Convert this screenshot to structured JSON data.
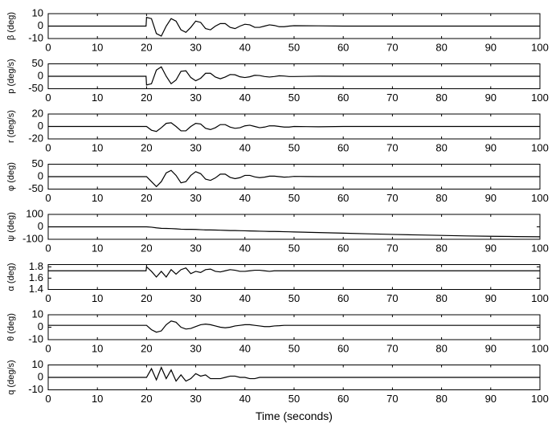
{
  "chart_data": [
    {
      "type": "line",
      "ylabel": "β (deg)",
      "color": "#000000",
      "xlim": [
        0,
        100
      ],
      "xticks": [
        0,
        10,
        20,
        30,
        40,
        50,
        60,
        70,
        80,
        90,
        100
      ],
      "ylim": [
        -10,
        10
      ],
      "yticks": [
        -10,
        0,
        10
      ],
      "x": [
        0,
        19.9,
        20,
        21,
        22,
        23,
        24,
        25,
        26,
        27,
        28,
        29,
        30,
        31,
        32,
        33,
        34,
        35,
        36,
        37,
        38,
        39,
        40,
        41,
        42,
        43,
        44,
        45,
        46,
        47,
        48,
        49,
        50,
        55,
        60,
        65,
        70,
        75,
        80,
        85,
        90,
        95,
        100
      ],
      "values": [
        0,
        0,
        7,
        6,
        -6,
        -8,
        0,
        6,
        4,
        -3,
        -5,
        -1,
        4,
        3,
        -2,
        -3,
        0,
        2,
        2,
        -1,
        -2,
        0,
        1.5,
        1,
        -1,
        -1,
        0,
        1,
        0.5,
        -0.5,
        -0.5,
        0,
        0.3,
        0.2,
        0,
        0,
        0,
        0,
        0,
        0,
        0,
        0,
        0
      ]
    },
    {
      "type": "line",
      "ylabel": "p (deg/s)",
      "color": "#000000",
      "xlim": [
        0,
        100
      ],
      "xticks": [
        0,
        10,
        20,
        30,
        40,
        50,
        60,
        70,
        80,
        90,
        100
      ],
      "ylim": [
        -50,
        50
      ],
      "yticks": [
        -50,
        0,
        50
      ],
      "x": [
        0,
        19.9,
        20,
        21,
        22,
        23,
        24,
        25,
        26,
        27,
        28,
        29,
        30,
        31,
        32,
        33,
        34,
        35,
        36,
        37,
        38,
        39,
        40,
        41,
        42,
        43,
        44,
        45,
        46,
        47,
        48,
        49,
        50,
        55,
        60,
        65,
        70,
        75,
        80,
        85,
        90,
        95,
        100
      ],
      "values": [
        0,
        0,
        -35,
        -30,
        25,
        38,
        0,
        -30,
        -15,
        20,
        22,
        -5,
        -18,
        -8,
        12,
        12,
        -3,
        -10,
        -3,
        7,
        6,
        -2,
        -5,
        -2,
        4,
        3,
        -1,
        -3,
        -1,
        2,
        1,
        -1,
        -1,
        0.5,
        0,
        0,
        0,
        0,
        0,
        0,
        0,
        0,
        0
      ]
    },
    {
      "type": "line",
      "ylabel": "r (deg/s)",
      "color": "#000000",
      "xlim": [
        0,
        100
      ],
      "xticks": [
        0,
        10,
        20,
        30,
        40,
        50,
        60,
        70,
        80,
        90,
        100
      ],
      "ylim": [
        -20,
        20
      ],
      "yticks": [
        -20,
        0,
        20
      ],
      "x": [
        0,
        19.9,
        20,
        21,
        22,
        23,
        24,
        25,
        26,
        27,
        28,
        29,
        30,
        31,
        32,
        33,
        34,
        35,
        36,
        37,
        38,
        39,
        40,
        41,
        42,
        43,
        44,
        45,
        46,
        47,
        48,
        49,
        50,
        55,
        60,
        65,
        70,
        75,
        80,
        85,
        90,
        95,
        100
      ],
      "values": [
        0,
        0,
        0,
        -6,
        -8,
        -2,
        5,
        6,
        0,
        -7,
        -7,
        0,
        5,
        4,
        -3,
        -5,
        -2,
        3,
        3,
        -1,
        -3,
        -2,
        1,
        2,
        0,
        -2,
        -1,
        1,
        1,
        0,
        -1,
        -1,
        0,
        -0.5,
        0,
        0,
        0,
        0,
        0,
        0,
        0,
        0,
        0
      ]
    },
    {
      "type": "line",
      "ylabel": "φ (deg)",
      "color": "#000000",
      "xlim": [
        0,
        100
      ],
      "xticks": [
        0,
        10,
        20,
        30,
        40,
        50,
        60,
        70,
        80,
        90,
        100
      ],
      "ylim": [
        -50,
        50
      ],
      "yticks": [
        -50,
        0,
        50
      ],
      "x": [
        0,
        19.9,
        20,
        21,
        22,
        23,
        24,
        25,
        26,
        27,
        28,
        29,
        30,
        31,
        32,
        33,
        34,
        35,
        36,
        37,
        38,
        39,
        40,
        41,
        42,
        43,
        44,
        45,
        46,
        47,
        48,
        49,
        50,
        55,
        60,
        65,
        70,
        75,
        80,
        85,
        90,
        95,
        100
      ],
      "values": [
        0,
        0,
        0,
        -20,
        -40,
        -20,
        15,
        25,
        5,
        -25,
        -20,
        5,
        20,
        12,
        -10,
        -15,
        -5,
        10,
        10,
        -3,
        -8,
        -4,
        5,
        5,
        -1,
        -4,
        -2,
        2,
        2,
        0,
        -2,
        -1,
        1,
        0,
        0,
        0,
        0,
        0,
        0,
        0,
        0,
        0,
        0
      ]
    },
    {
      "type": "line",
      "ylabel": "ψ (deg)",
      "color": "#000000",
      "xlim": [
        0,
        100
      ],
      "xticks": [
        0,
        10,
        20,
        30,
        40,
        50,
        60,
        70,
        80,
        90,
        100
      ],
      "ylim": [
        -100,
        100
      ],
      "yticks": [
        -100,
        0,
        100
      ],
      "x": [
        0,
        19.9,
        20,
        21,
        22,
        23,
        24,
        25,
        26,
        27,
        28,
        29,
        30,
        31,
        32,
        33,
        34,
        35,
        36,
        37,
        38,
        39,
        40,
        41,
        42,
        43,
        44,
        45,
        46,
        47,
        48,
        49,
        50,
        55,
        60,
        65,
        70,
        75,
        80,
        85,
        90,
        95,
        100
      ],
      "values": [
        0,
        0,
        0,
        -3,
        -8,
        -12,
        -13,
        -14,
        -16,
        -19,
        -20,
        -20,
        -21,
        -23,
        -25,
        -25,
        -26,
        -27,
        -28,
        -30,
        -30,
        -31,
        -32,
        -33,
        -34,
        -35,
        -36,
        -37,
        -37,
        -38,
        -39,
        -40,
        -41,
        -46,
        -51,
        -56,
        -61,
        -65,
        -69,
        -73,
        -76,
        -78,
        -80
      ]
    },
    {
      "type": "line",
      "ylabel": "α (deg)",
      "color": "#000000",
      "xlim": [
        0,
        100
      ],
      "xticks": [
        0,
        10,
        20,
        30,
        40,
        50,
        60,
        70,
        80,
        90,
        100
      ],
      "ylim": [
        1.4,
        1.84
      ],
      "yticks": [
        1.4,
        1.6,
        1.8
      ],
      "x": [
        0,
        19.9,
        20,
        21,
        22,
        23,
        24,
        25,
        26,
        27,
        28,
        29,
        30,
        31,
        32,
        33,
        34,
        35,
        36,
        37,
        38,
        39,
        40,
        41,
        42,
        43,
        44,
        45,
        46,
        47,
        48,
        49,
        50,
        55,
        60,
        65,
        70,
        75,
        80,
        85,
        90,
        95,
        100
      ],
      "values": [
        1.73,
        1.73,
        1.8,
        1.72,
        1.62,
        1.72,
        1.62,
        1.75,
        1.67,
        1.75,
        1.78,
        1.68,
        1.72,
        1.7,
        1.75,
        1.76,
        1.72,
        1.71,
        1.73,
        1.75,
        1.74,
        1.72,
        1.72,
        1.73,
        1.74,
        1.74,
        1.73,
        1.72,
        1.73,
        1.73,
        1.73,
        1.73,
        1.73,
        1.73,
        1.73,
        1.73,
        1.73,
        1.73,
        1.73,
        1.73,
        1.73,
        1.73,
        1.73
      ]
    },
    {
      "type": "line",
      "ylabel": "θ (deg)",
      "color": "#000000",
      "xlim": [
        0,
        100
      ],
      "xticks": [
        0,
        10,
        20,
        30,
        40,
        50,
        60,
        70,
        80,
        90,
        100
      ],
      "ylim": [
        -10,
        10
      ],
      "yticks": [
        -10,
        0,
        10
      ],
      "x": [
        0,
        19.9,
        20,
        21,
        22,
        23,
        24,
        25,
        26,
        27,
        28,
        29,
        30,
        31,
        32,
        33,
        34,
        35,
        36,
        37,
        38,
        39,
        40,
        41,
        42,
        43,
        44,
        45,
        46,
        47,
        48,
        49,
        50,
        55,
        60,
        65,
        70,
        75,
        80,
        85,
        90,
        95,
        100
      ],
      "values": [
        1.5,
        1.5,
        1.5,
        -2,
        -4,
        -3,
        2,
        5,
        4,
        0,
        -1.5,
        -1,
        0.5,
        2,
        2.5,
        2,
        1,
        0,
        -0.5,
        0,
        1,
        1.5,
        2,
        2,
        1.5,
        1,
        0.5,
        0.5,
        1,
        1.2,
        1.5,
        1.5,
        1.5,
        1.5,
        1.5,
        1.5,
        1.5,
        1.5,
        1.5,
        1.5,
        1.5,
        1.5,
        1.5
      ]
    },
    {
      "type": "line",
      "ylabel": "q (deg/s)",
      "xlabel": "Time (seconds)",
      "color": "#000000",
      "xlim": [
        0,
        100
      ],
      "xticks": [
        0,
        10,
        20,
        30,
        40,
        50,
        60,
        70,
        80,
        90,
        100
      ],
      "ylim": [
        -10,
        10
      ],
      "yticks": [
        -10,
        0,
        10
      ],
      "x": [
        0,
        19.9,
        20,
        21,
        22,
        23,
        24,
        25,
        26,
        27,
        28,
        29,
        30,
        31,
        32,
        33,
        34,
        35,
        36,
        37,
        38,
        39,
        40,
        41,
        42,
        43,
        44,
        45,
        46,
        47,
        48,
        49,
        50,
        55,
        60,
        65,
        70,
        75,
        80,
        85,
        90,
        95,
        100
      ],
      "values": [
        0,
        0,
        0,
        7,
        -2,
        8,
        -1,
        6,
        -3,
        2,
        -3,
        -1,
        3,
        1,
        2,
        -1,
        -1,
        -1,
        0,
        1,
        1,
        0,
        0,
        -1,
        -1,
        0,
        0,
        0,
        0,
        0,
        0,
        0,
        0,
        0,
        0,
        0,
        0,
        0,
        0,
        0,
        0,
        0,
        0
      ]
    }
  ]
}
